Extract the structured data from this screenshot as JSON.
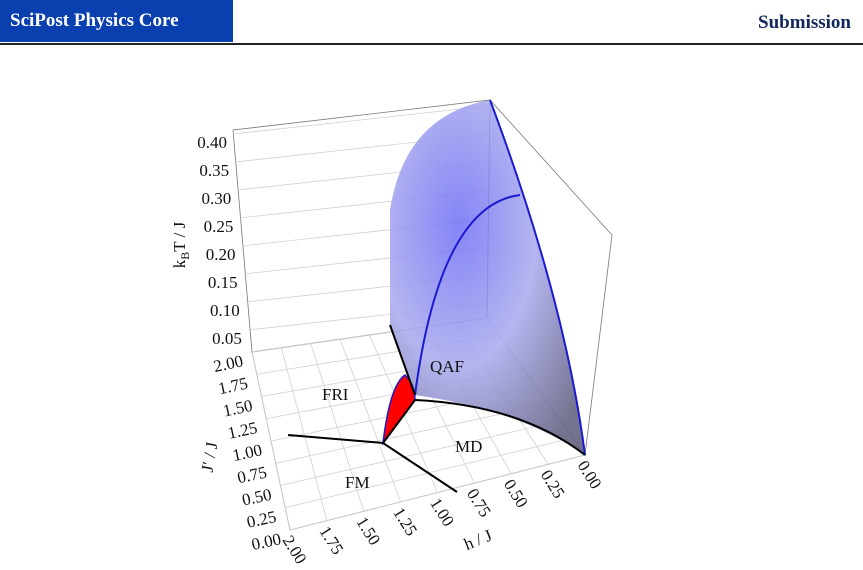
{
  "header": {
    "journal": "SciPost Physics Core",
    "label": "Submission"
  },
  "figure": {
    "z_axis_label": {
      "main": "k",
      "sub": "B",
      "rest": "T / J"
    },
    "y_axis_label": "J′ / J",
    "x_axis_label": "h / J",
    "z_ticks": [
      "0.05",
      "0.10",
      "0.15",
      "0.20",
      "0.25",
      "0.30",
      "0.35",
      "0.40"
    ],
    "y_ticks": [
      "0.00",
      "0.25",
      "0.50",
      "0.75",
      "1.00",
      "1.25",
      "1.50",
      "1.75",
      "2.00"
    ],
    "x_ticks": [
      "2.00",
      "1.75",
      "1.50",
      "1.25",
      "1.00",
      "0.75",
      "0.50",
      "0.25",
      "0.00"
    ],
    "regions": [
      "QAF",
      "FRI",
      "MD",
      "FM"
    ]
  }
}
